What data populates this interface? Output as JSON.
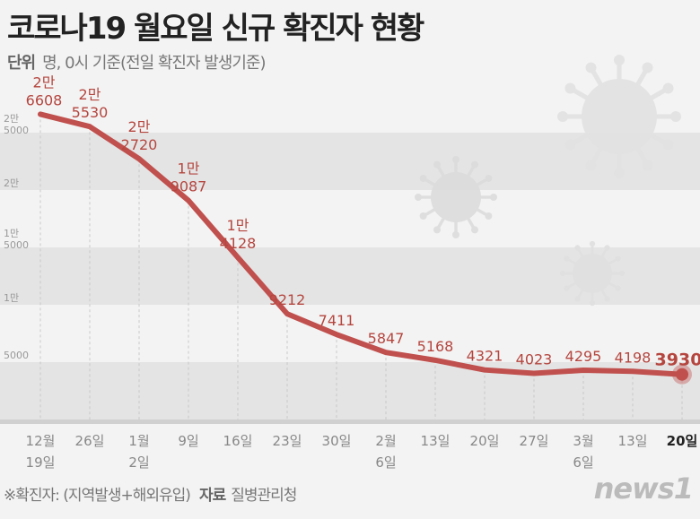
{
  "header": {
    "title": "코로나19 월요일 신규 확진자 현황",
    "unit_label": "단위",
    "unit_text": "명, 0시 기준(전일 확진자 발생기준)"
  },
  "footer": {
    "note": "※확진자: (지역발생+해외유입)",
    "source_label": "자료",
    "source": "질병관리청",
    "logo": "news1"
  },
  "colors": {
    "line": "#c0504d",
    "label": "#b5463f",
    "band": "#e4e4e4",
    "background": "#f3f3f3"
  },
  "chart_data": {
    "type": "line",
    "categories": [
      "12월 19일",
      "26일",
      "1월 2일",
      "9일",
      "16일",
      "23일",
      "30일",
      "2월 6일",
      "13일",
      "20일",
      "27일",
      "3월 6일",
      "13일",
      "20일"
    ],
    "values": [
      26608,
      25530,
      22720,
      19087,
      14128,
      9212,
      7411,
      5847,
      5168,
      4321,
      4023,
      4295,
      4198,
      3930
    ],
    "value_labels": [
      "2만 6608",
      "2만 5530",
      "2만 2720",
      "1만 9087",
      "1만 4128",
      "9212",
      "7411",
      "5847",
      "5168",
      "4321",
      "4023",
      "4295",
      "4198",
      "3930"
    ],
    "y_ticks": [
      {
        "value": 25000,
        "label": "2만 5000"
      },
      {
        "value": 20000,
        "label": "2만"
      },
      {
        "value": 15000,
        "label": "1만 5000"
      },
      {
        "value": 10000,
        "label": "1만"
      },
      {
        "value": 5000,
        "label": "5000"
      }
    ],
    "ylim": [
      0,
      25000
    ],
    "grid": "alternating bands",
    "highlight_last": true
  }
}
